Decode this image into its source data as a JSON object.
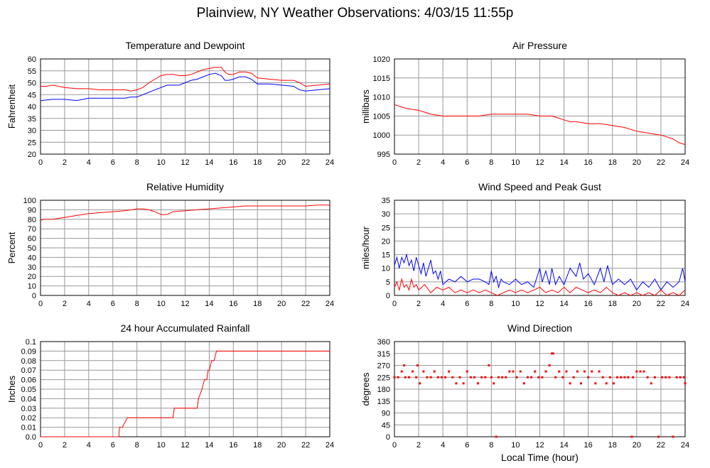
{
  "title": "Plainview, NY Weather Observations: 4/03/15 11:55p",
  "xlabel_shared": "Local Time (hour)",
  "colors": {
    "red": "#ff0000",
    "blue": "#0000ff",
    "grid": "#999999",
    "frame": "#000000"
  },
  "chart_data": [
    {
      "id": "temp",
      "type": "line",
      "title": "Temperature and Dewpoint",
      "xlabel": "",
      "ylabel": "Fahrenheit",
      "xlim": [
        0,
        24
      ],
      "ylim": [
        20,
        60
      ],
      "xticks": [
        0,
        2,
        4,
        6,
        8,
        10,
        12,
        14,
        16,
        18,
        20,
        22,
        24
      ],
      "yticks": [
        20,
        25,
        30,
        35,
        40,
        45,
        50,
        55,
        60
      ],
      "grid": true,
      "series": [
        {
          "color": "#ff0000",
          "x": [
            0,
            0.5,
            1,
            2,
            3,
            4,
            5,
            6,
            7,
            7.5,
            8,
            8.5,
            9,
            9.5,
            10,
            10.5,
            11,
            11.5,
            12,
            12.5,
            13,
            13.5,
            14,
            14.5,
            15,
            15.3,
            15.6,
            16,
            16.5,
            17,
            17.5,
            18,
            19,
            20,
            21,
            21.5,
            22,
            23,
            24
          ],
          "y": [
            48.5,
            48.5,
            49,
            48,
            47.5,
            47.5,
            47,
            47,
            47,
            46.5,
            47,
            48,
            50,
            51.5,
            53,
            53.5,
            53.5,
            53,
            53,
            53.5,
            54.5,
            55.5,
            56,
            56.5,
            56.5,
            54.5,
            53.5,
            53.5,
            54.5,
            54.5,
            54,
            52,
            51.5,
            51,
            51,
            50,
            48.5,
            49,
            49.5
          ]
        },
        {
          "color": "#0000ff",
          "x": [
            0,
            1,
            2,
            3,
            4,
            5,
            6,
            7,
            7.5,
            8,
            8.5,
            9,
            9.5,
            10,
            10.5,
            11,
            11.5,
            12,
            12.5,
            13,
            13.5,
            14,
            14.5,
            15,
            15.3,
            15.6,
            16,
            16.5,
            17,
            17.5,
            18,
            19,
            20,
            21,
            21.5,
            22,
            23,
            24
          ],
          "y": [
            42.5,
            43,
            43,
            42.5,
            43.5,
            43.5,
            43.5,
            43.5,
            44,
            44,
            45,
            46,
            47,
            48,
            49,
            49,
            49,
            50,
            51,
            51.5,
            52.5,
            53.5,
            54,
            53,
            51,
            51,
            51.5,
            52.5,
            52.5,
            51.5,
            49.5,
            49.5,
            49,
            48.5,
            47,
            46.5,
            47,
            47.5
          ]
        }
      ]
    },
    {
      "id": "pressure",
      "type": "line",
      "title": "Air Pressure",
      "xlabel": "",
      "ylabel": "millibars",
      "xlim": [
        0,
        24
      ],
      "ylim": [
        995,
        1020
      ],
      "xticks": [
        0,
        2,
        4,
        6,
        8,
        10,
        12,
        14,
        16,
        18,
        20,
        22,
        24
      ],
      "yticks": [
        995,
        1000,
        1005,
        1010,
        1015,
        1020
      ],
      "grid": true,
      "series": [
        {
          "color": "#ff0000",
          "x": [
            0,
            0.5,
            1,
            2,
            3,
            4,
            5,
            6,
            7,
            8,
            9,
            10,
            11,
            12,
            13,
            13.5,
            14,
            14.5,
            15,
            16,
            17,
            18,
            19,
            20,
            21,
            22,
            23,
            23.5,
            24
          ],
          "y": [
            1008,
            1007.5,
            1007,
            1006.5,
            1005.5,
            1005,
            1005,
            1005,
            1005,
            1005.5,
            1005.5,
            1005.5,
            1005.5,
            1005,
            1005,
            1004.5,
            1004,
            1003.5,
            1003.5,
            1003,
            1003,
            1002.5,
            1002,
            1001,
            1000.5,
            1000,
            999,
            998,
            997.5
          ]
        }
      ]
    },
    {
      "id": "humidity",
      "type": "line",
      "title": "Relative Humidity",
      "xlabel": "",
      "ylabel": "Percent",
      "xlim": [
        0,
        24
      ],
      "ylim": [
        0,
        100
      ],
      "xticks": [
        0,
        2,
        4,
        6,
        8,
        10,
        12,
        14,
        16,
        18,
        20,
        22,
        24
      ],
      "yticks": [
        0,
        10,
        20,
        30,
        40,
        50,
        60,
        70,
        80,
        90,
        100
      ],
      "grid": true,
      "series": [
        {
          "color": "#ff0000",
          "x": [
            0,
            0.3,
            1,
            2,
            3,
            4,
            5,
            6,
            7,
            8,
            8.5,
            9,
            9.5,
            10,
            10.5,
            11,
            12,
            13,
            14,
            15,
            16,
            17,
            18,
            19,
            20,
            21,
            22,
            23,
            24
          ],
          "y": [
            79,
            80,
            80,
            82,
            84,
            86,
            87,
            88,
            89,
            91,
            91,
            90,
            88,
            85,
            85,
            88,
            89,
            90,
            91,
            92,
            93,
            94,
            94,
            94,
            94,
            94,
            94,
            95,
            95
          ]
        }
      ]
    },
    {
      "id": "wind",
      "type": "line",
      "title": "Wind Speed and Peak Gust",
      "xlabel": "",
      "ylabel": "miles/hour",
      "xlim": [
        0,
        24
      ],
      "ylim": [
        0,
        35
      ],
      "xticks": [
        0,
        2,
        4,
        6,
        8,
        10,
        12,
        14,
        16,
        18,
        20,
        22,
        24
      ],
      "yticks": [
        0,
        5,
        10,
        15,
        20,
        25,
        30,
        35
      ],
      "grid": true,
      "series": [
        {
          "color": "#0000ff",
          "x": [
            0,
            0.2,
            0.4,
            0.6,
            0.8,
            1,
            1.2,
            1.4,
            1.6,
            1.8,
            2,
            2.2,
            2.4,
            2.6,
            2.8,
            3,
            3.2,
            3.4,
            3.6,
            3.8,
            4,
            4.5,
            5,
            5.5,
            6,
            6.5,
            7,
            7.5,
            7.8,
            8,
            8.2,
            8.4,
            8.6,
            8.8,
            9,
            9.5,
            10,
            10.5,
            11,
            11.5,
            12,
            12.2,
            12.5,
            12.8,
            13,
            13.3,
            13.6,
            14,
            14.5,
            15,
            15.3,
            15.6,
            16,
            16.5,
            17,
            17.3,
            17.6,
            18,
            18.5,
            19,
            19.5,
            20,
            20.5,
            21,
            21.5,
            22,
            22.5,
            23,
            23.5,
            23.8,
            24
          ],
          "y": [
            11,
            14,
            10,
            14,
            12,
            15,
            11,
            13,
            9,
            14,
            11,
            8,
            12,
            7,
            10,
            13,
            8,
            9,
            6,
            9,
            4,
            6,
            5,
            7,
            5,
            6,
            6,
            5,
            4,
            9,
            5,
            7,
            3,
            6,
            5,
            4,
            6,
            4,
            5,
            3,
            10,
            5,
            9,
            4,
            10,
            4,
            7,
            4,
            10,
            7,
            12,
            6,
            8,
            4,
            10,
            5,
            11,
            4,
            6,
            4,
            6,
            2,
            5,
            3,
            6,
            2,
            5,
            3,
            5,
            10,
            5
          ]
        },
        {
          "color": "#ff0000",
          "x": [
            0,
            0.2,
            0.4,
            0.6,
            0.8,
            1,
            1.2,
            1.4,
            1.6,
            1.8,
            2,
            2.5,
            3,
            3.5,
            4,
            4.5,
            5,
            5.5,
            6,
            6.5,
            7,
            7.5,
            8,
            8.5,
            9,
            9.5,
            10,
            10.5,
            11,
            11.5,
            12,
            12.5,
            13,
            13.5,
            14,
            14.5,
            15,
            15.5,
            16,
            16.5,
            17,
            17.5,
            18,
            18.5,
            19,
            19.5,
            20,
            20.5,
            21,
            21.5,
            22,
            22.5,
            23,
            23.5,
            24
          ],
          "y": [
            3,
            5,
            2,
            6,
            3,
            4,
            2,
            6,
            3,
            4,
            2,
            4,
            1,
            3,
            2,
            3,
            1,
            2,
            1,
            2,
            1,
            2,
            1,
            0,
            1,
            2,
            1,
            2,
            1,
            2,
            3,
            1,
            2,
            1,
            3,
            1,
            3,
            2,
            1,
            2,
            1,
            3,
            1,
            0,
            1,
            0,
            1,
            0,
            1,
            0,
            2,
            0,
            1,
            0,
            2
          ]
        }
      ]
    },
    {
      "id": "rain",
      "type": "line",
      "title": "24 hour Accumulated Rainfall",
      "xlabel": "",
      "ylabel": "Inches",
      "xlim": [
        0,
        24
      ],
      "ylim": [
        0,
        0.1
      ],
      "xticks": [
        0,
        2,
        4,
        6,
        8,
        10,
        12,
        14,
        16,
        18,
        20,
        22,
        24
      ],
      "yticks": [
        0,
        0.01,
        0.02,
        0.03,
        0.04,
        0.05,
        0.06,
        0.07,
        0.08,
        0.09,
        0.1
      ],
      "yticklabels": [
        "0.0",
        "0.01",
        "0.02",
        "0.03",
        "0.04",
        "0.05",
        "0.06",
        "0.07",
        "0.08",
        "0.09",
        "0.1"
      ],
      "grid": true,
      "series": [
        {
          "color": "#ff0000",
          "x": [
            0,
            6.5,
            6.55,
            6.8,
            7.2,
            11,
            11.1,
            13,
            13.1,
            13.4,
            13.6,
            13.8,
            13.9,
            14,
            14.2,
            14.4,
            14.6,
            24
          ],
          "y": [
            0,
            0,
            0.01,
            0.01,
            0.02,
            0.02,
            0.03,
            0.03,
            0.04,
            0.05,
            0.06,
            0.06,
            0.07,
            0.07,
            0.08,
            0.08,
            0.09,
            0.09
          ]
        }
      ]
    },
    {
      "id": "direction",
      "type": "scatter",
      "title": "Wind Direction",
      "xlabel": "Local Time (hour)",
      "ylabel": "degrees",
      "xlim": [
        0,
        24
      ],
      "ylim": [
        0,
        360
      ],
      "xticks": [
        0,
        2,
        4,
        6,
        8,
        10,
        12,
        14,
        16,
        18,
        20,
        22,
        24
      ],
      "yticks": [
        0,
        45,
        90,
        135,
        180,
        225,
        270,
        315,
        360
      ],
      "grid": true,
      "series": [
        {
          "color": "#ff0000",
          "x": [
            0,
            0.3,
            0.6,
            0.8,
            0.9,
            1.2,
            1.5,
            1.8,
            1.9,
            2.1,
            2.4,
            2.7,
            3.0,
            3.3,
            3.6,
            3.9,
            4.2,
            4.5,
            4.8,
            5.1,
            5.4,
            5.7,
            6.0,
            6.3,
            6.6,
            6.9,
            7.2,
            7.5,
            7.8,
            8.0,
            8.2,
            8.4,
            8.6,
            8.9,
            9.2,
            9.5,
            9.8,
            10.1,
            10.4,
            10.7,
            11.0,
            11.3,
            11.6,
            11.9,
            12.2,
            12.5,
            12.8,
            13.0,
            13.1,
            13.3,
            13.6,
            13.9,
            14.2,
            14.5,
            14.8,
            15.1,
            15.4,
            15.7,
            16.0,
            16.3,
            16.6,
            16.9,
            17.2,
            17.5,
            17.8,
            18.1,
            18.4,
            18.7,
            19.0,
            19.3,
            19.6,
            19.7,
            20.0,
            20.3,
            20.6,
            20.9,
            21.2,
            21.5,
            21.8,
            22.1,
            22.4,
            22.7,
            23.0,
            23.3,
            23.6,
            23.9,
            24
          ],
          "y": [
            225,
            225,
            247,
            270,
            225,
            225,
            247,
            225,
            270,
            202,
            247,
            225,
            225,
            247,
            225,
            225,
            225,
            247,
            225,
            202,
            225,
            202,
            247,
            225,
            225,
            202,
            225,
            225,
            270,
            225,
            202,
            0,
            225,
            225,
            225,
            247,
            247,
            225,
            247,
            202,
            225,
            225,
            247,
            225,
            225,
            247,
            270,
            315,
            315,
            225,
            247,
            225,
            247,
            202,
            225,
            247,
            202,
            247,
            225,
            247,
            202,
            247,
            225,
            202,
            225,
            202,
            225,
            225,
            225,
            225,
            0,
            225,
            247,
            247,
            247,
            225,
            202,
            225,
            0,
            225,
            225,
            225,
            0,
            225,
            225,
            225,
            202
          ]
        }
      ]
    }
  ]
}
